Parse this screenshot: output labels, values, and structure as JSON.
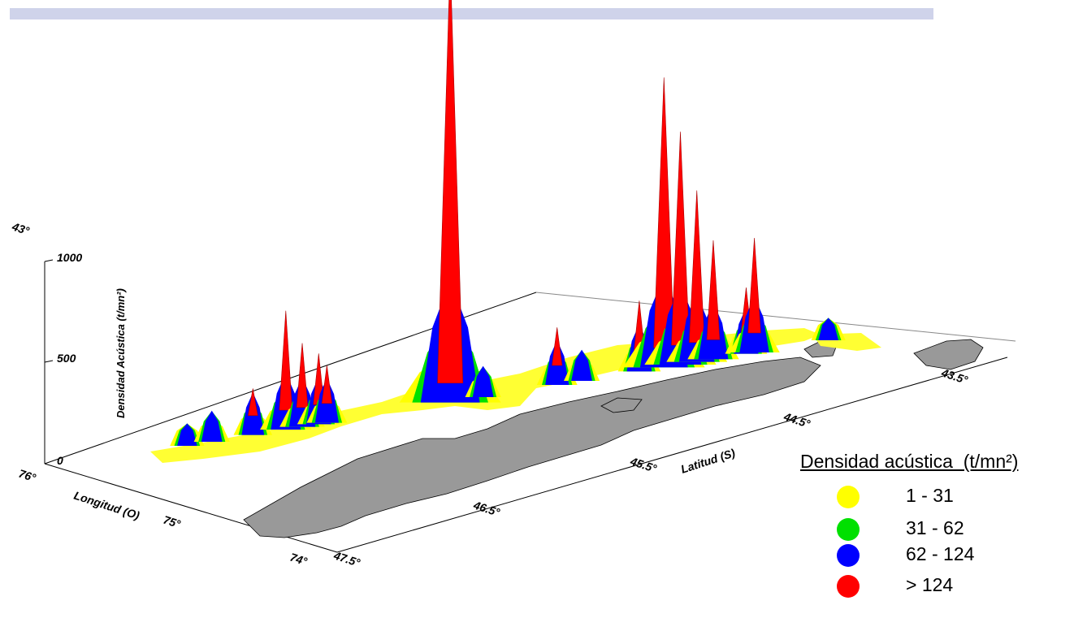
{
  "header": {
    "band_color": "#cfd3ea"
  },
  "chart_data": {
    "type": "surface3d",
    "z_axis": {
      "label": "Densidad Acústica (t/mn²)",
      "ticks": [
        "0",
        "500",
        "1000"
      ],
      "range": [
        0,
        1000
      ]
    },
    "longitude_axis": {
      "label": "Longitud (O)",
      "ticks": [
        "76°",
        "75°",
        "74°"
      ]
    },
    "latitude_axis": {
      "label": "Latitud (S)",
      "ticks": [
        "43°",
        "43.5°",
        "44.5°",
        "45.5°",
        "46.5°",
        "47.5°"
      ]
    },
    "legend": {
      "title": "Densidad acústica  (t/mn²)",
      "items": [
        {
          "label": "1 - 31",
          "color": "#ffff00"
        },
        {
          "label": "31 - 62",
          "color": "#00e000"
        },
        {
          "label": "62 - 124",
          "color": "#0000ff"
        },
        {
          "label": "> 124",
          "color": "#ff0000"
        }
      ]
    },
    "peaks": [
      {
        "latitude": 47.35,
        "density": 40
      },
      {
        "latitude": 47.2,
        "density": 60
      },
      {
        "latitude": 46.95,
        "density": 95
      },
      {
        "latitude": 46.75,
        "density": 260
      },
      {
        "latitude": 46.65,
        "density": 180
      },
      {
        "latitude": 46.55,
        "density": 150
      },
      {
        "latitude": 46.5,
        "density": 120
      },
      {
        "latitude": 45.75,
        "density": 1000
      },
      {
        "latitude": 45.55,
        "density": 60
      },
      {
        "latitude": 45.1,
        "density": 120
      },
      {
        "latitude": 44.95,
        "density": 60
      },
      {
        "latitude": 44.6,
        "density": 150
      },
      {
        "latitude": 44.45,
        "density": 650
      },
      {
        "latitude": 44.35,
        "density": 520
      },
      {
        "latitude": 44.25,
        "density": 380
      },
      {
        "latitude": 44.15,
        "density": 260
      },
      {
        "latitude": 43.95,
        "density": 140
      },
      {
        "latitude": 43.9,
        "density": 250
      },
      {
        "latitude": 43.45,
        "density": 40
      }
    ]
  }
}
